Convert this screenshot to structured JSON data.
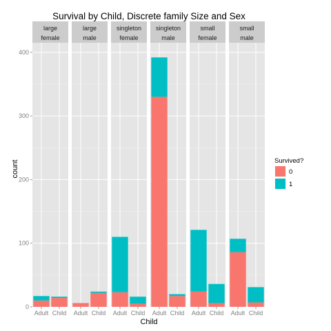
{
  "chart_data": {
    "type": "bar",
    "stacked": true,
    "title": "Survival by Child, Discrete family Size and Sex",
    "xlabel": "Child",
    "ylabel": "count",
    "ylim": [
      0,
      415
    ],
    "yticks": [
      0,
      100,
      200,
      300,
      400
    ],
    "categories": [
      "Adult",
      "Child"
    ],
    "legend": {
      "title": "Survived?",
      "placement": "right",
      "entries": [
        {
          "label": "0",
          "color": "#F8766D"
        },
        {
          "label": "1",
          "color": "#00BFC4"
        }
      ]
    },
    "colors": {
      "0": "#F8766D",
      "1": "#00BFC4",
      "panel": "#E5E5E5",
      "strip": "#CCCCCC",
      "grid": "#F2F2F2"
    },
    "facets": [
      {
        "size": "large",
        "sex": "female",
        "bars": [
          {
            "category": "Adult",
            "survived_0": 10,
            "survived_1": 7
          },
          {
            "category": "Child",
            "survived_0": 14,
            "survived_1": 2
          }
        ]
      },
      {
        "size": "large",
        "sex": "male",
        "bars": [
          {
            "category": "Adult",
            "survived_0": 6,
            "survived_1": 0
          },
          {
            "category": "Child",
            "survived_0": 22,
            "survived_1": 2
          }
        ]
      },
      {
        "size": "singleton",
        "sex": "female",
        "bars": [
          {
            "category": "Adult",
            "survived_0": 23,
            "survived_1": 87
          },
          {
            "category": "Child",
            "survived_0": 5,
            "survived_1": 11
          }
        ]
      },
      {
        "size": "singleton",
        "sex": "male",
        "bars": [
          {
            "category": "Adult",
            "survived_0": 330,
            "survived_1": 62
          },
          {
            "category": "Child",
            "survived_0": 17,
            "survived_1": 3
          }
        ]
      },
      {
        "size": "small",
        "sex": "female",
        "bars": [
          {
            "category": "Adult",
            "survived_0": 24,
            "survived_1": 97
          },
          {
            "category": "Child",
            "survived_0": 6,
            "survived_1": 30
          }
        ]
      },
      {
        "size": "small",
        "sex": "male",
        "bars": [
          {
            "category": "Adult",
            "survived_0": 86,
            "survived_1": 21
          },
          {
            "category": "Child",
            "survived_0": 7,
            "survived_1": 24
          }
        ]
      }
    ]
  }
}
